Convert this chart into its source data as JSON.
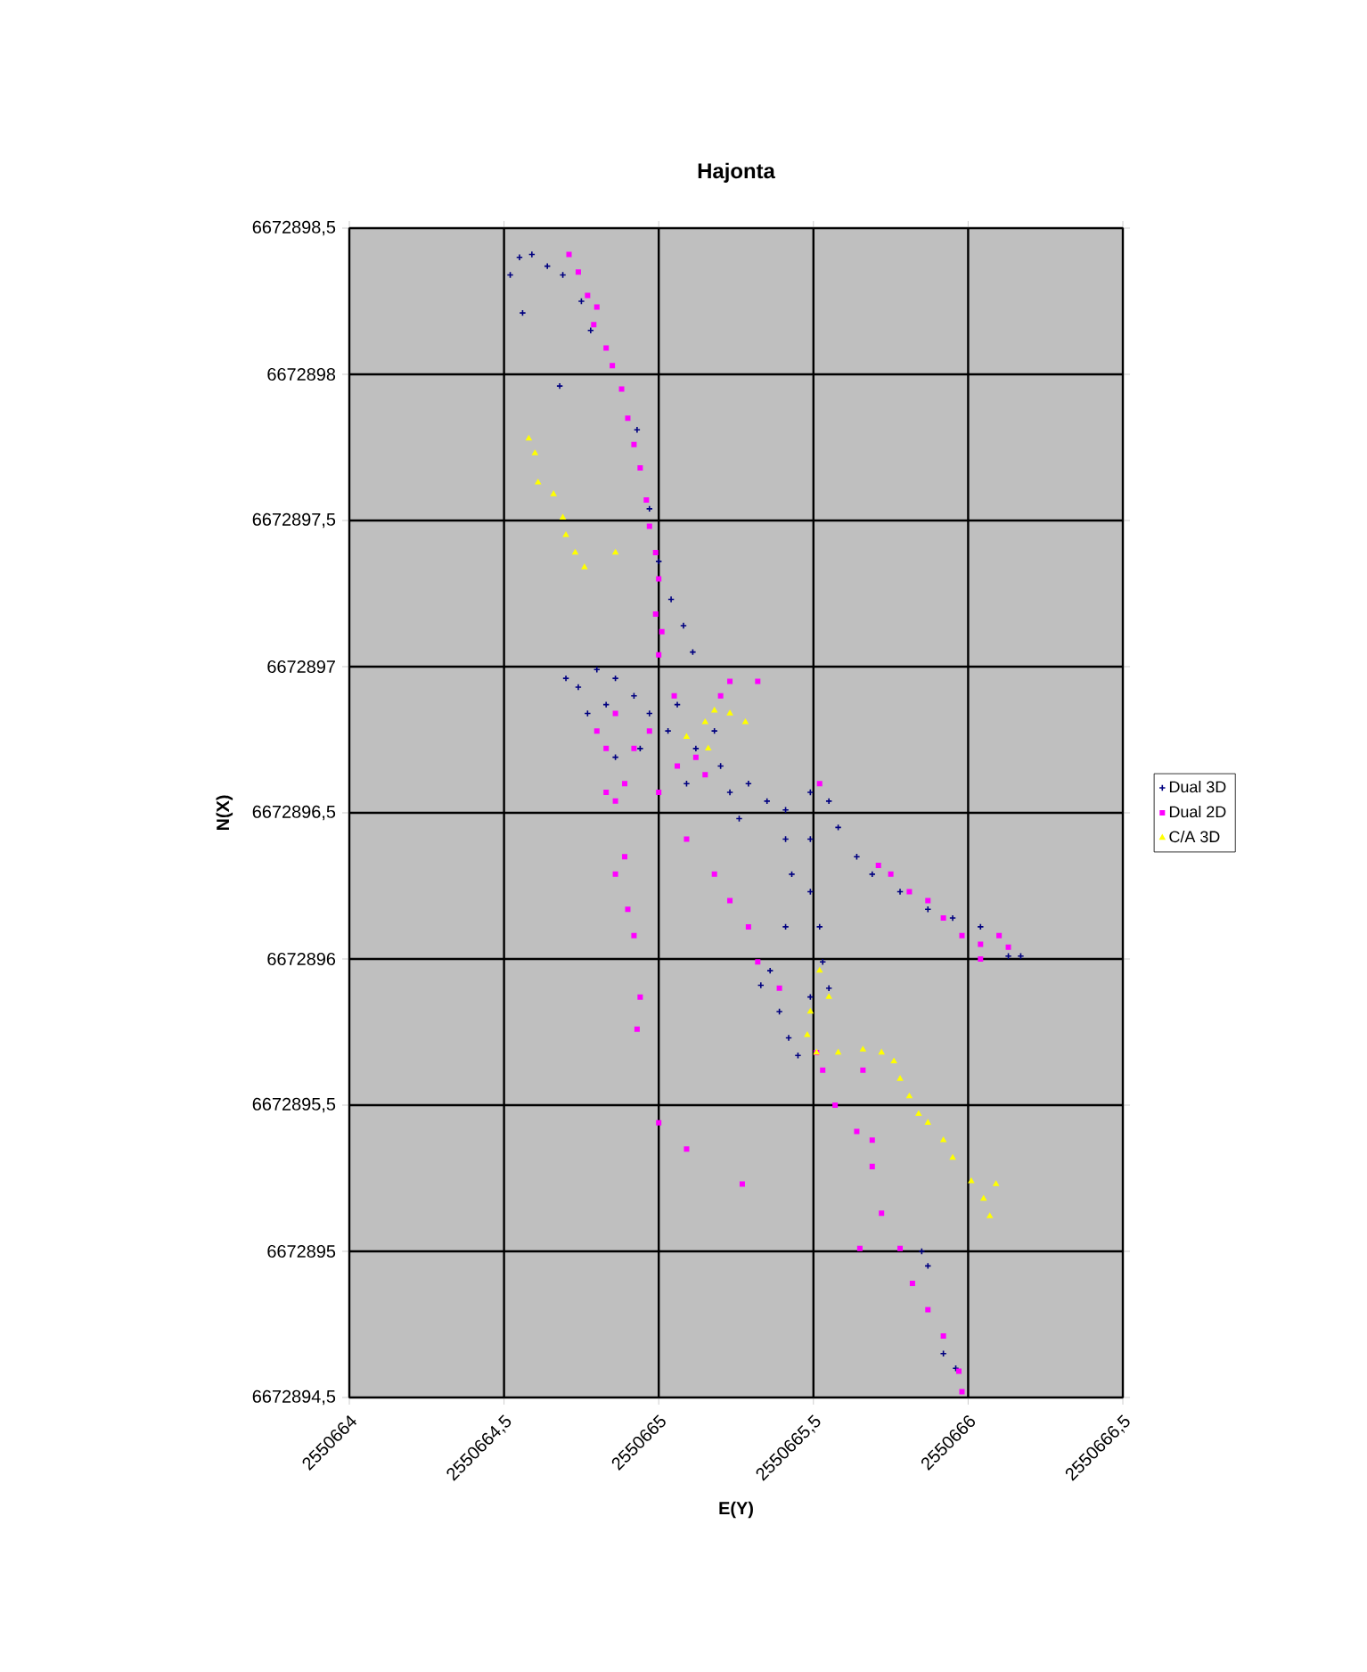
{
  "chart_data": {
    "type": "scatter",
    "title": "Hajonta",
    "xlabel": "E(Y)",
    "ylabel": "N(X)",
    "xlim": [
      2550664,
      2550666.5
    ],
    "ylim": [
      6672894.5,
      6672898.5
    ],
    "xticks": [
      2550664,
      {
        "value": 2550664.5,
        "label": "2550664,5"
      },
      2550665,
      {
        "value": 2550665.5,
        "label": "2550665,5"
      },
      2550666,
      {
        "value": 2550666.5,
        "label": "2550666,5"
      }
    ],
    "yticks": [
      {
        "value": 6672894.5,
        "label": "6672894,5"
      },
      6672895,
      {
        "value": 6672895.5,
        "label": "6672895,5"
      },
      6672896,
      {
        "value": 6672896.5,
        "label": "6672896,5"
      },
      6672897,
      {
        "value": 6672897.5,
        "label": "6672897,5"
      },
      6672898,
      {
        "value": 6672898.5,
        "label": "6672898,5"
      }
    ],
    "grid": true,
    "legend": "right",
    "series": [
      {
        "name": "Dual 3D",
        "color": "#000080",
        "marker": "cross",
        "x": [
          2550664.52,
          2550664.55,
          2550664.59,
          2550664.64,
          2550664.69,
          2550664.56,
          2550664.75,
          2550664.78,
          2550664.68,
          2550664.93,
          2550664.97,
          2550665.0,
          2550665.04,
          2550665.08,
          2550665.11,
          2550664.7,
          2550664.74,
          2550664.8,
          2550664.86,
          2550664.92,
          2550664.83,
          2550664.77,
          2550664.97,
          2550665.06,
          2550665.03,
          2550664.94,
          2550664.86,
          2550665.12,
          2550665.18,
          2550665.2,
          2550665.09,
          2550665.23,
          2550665.29,
          2550665.35,
          2550665.26,
          2550665.41,
          2550665.49,
          2550665.55,
          2550665.58,
          2550665.49,
          2550665.64,
          2550665.69,
          2550665.78,
          2550665.87,
          2550665.95,
          2550666.04,
          2550666.13,
          2550666.17,
          2550665.41,
          2550665.43,
          2550665.49,
          2550665.52,
          2550665.53,
          2550665.55,
          2550665.49,
          2550665.41,
          2550665.36,
          2550665.33,
          2550665.39,
          2550665.42,
          2550665.45,
          2550665.85,
          2550665.87,
          2550665.92,
          2550665.96
        ],
        "values": [
          6672898.34,
          6672898.4,
          6672898.41,
          6672898.37,
          6672898.34,
          6672898.21,
          6672898.25,
          6672898.15,
          6672897.96,
          6672897.81,
          6672897.54,
          6672897.36,
          6672897.23,
          6672897.14,
          6672897.05,
          6672896.96,
          6672896.93,
          6672896.99,
          6672896.96,
          6672896.9,
          6672896.87,
          6672896.84,
          6672896.84,
          6672896.87,
          6672896.78,
          6672896.72,
          6672896.69,
          6672896.72,
          6672896.78,
          6672896.66,
          6672896.6,
          6672896.57,
          6672896.6,
          6672896.54,
          6672896.48,
          6672896.51,
          6672896.57,
          6672896.54,
          6672896.45,
          6672896.41,
          6672896.35,
          6672896.29,
          6672896.23,
          6672896.17,
          6672896.14,
          6672896.11,
          6672896.01,
          6672896.01,
          6672896.41,
          6672896.29,
          6672896.23,
          6672896.11,
          6672895.99,
          6672895.9,
          6672895.87,
          6672896.11,
          6672895.96,
          6672895.91,
          6672895.82,
          6672895.73,
          6672895.67,
          6672895.0,
          6672894.95,
          6672894.65,
          6672894.6
        ]
      },
      {
        "name": "Dual 2D",
        "color": "#ff00ff",
        "marker": "square",
        "x": [
          2550664.71,
          2550664.74,
          2550664.77,
          2550664.8,
          2550664.79,
          2550664.83,
          2550664.85,
          2550664.88,
          2550664.9,
          2550664.92,
          2550664.94,
          2550664.96,
          2550664.97,
          2550664.99,
          2550665.0,
          2550664.99,
          2550665.01,
          2550665.0,
          2550664.8,
          2550664.83,
          2550664.86,
          2550664.92,
          2550664.97,
          2550665.06,
          2550665.12,
          2550665.15,
          2550664.86,
          2550664.83,
          2550664.89,
          2550665.0,
          2550665.05,
          2550665.2,
          2550665.32,
          2550665.23,
          2550664.89,
          2550664.86,
          2550664.9,
          2550664.92,
          2550664.94,
          2550664.93,
          2550665.0,
          2550665.09,
          2550665.27,
          2550665.09,
          2550665.18,
          2550665.23,
          2550665.29,
          2550665.32,
          2550665.39,
          2550665.51,
          2550665.53,
          2550665.57,
          2550665.64,
          2550665.69,
          2550665.72,
          2550665.78,
          2550665.82,
          2550665.87,
          2550665.92,
          2550665.97,
          2550665.98,
          2550665.66,
          2550665.69,
          2550665.65,
          2550665.71,
          2550665.75,
          2550665.81,
          2550665.87,
          2550665.92,
          2550665.98,
          2550666.04,
          2550666.1,
          2550666.13,
          2550666.04,
          2550665.52
        ],
        "values": [
          6672898.41,
          6672898.35,
          6672898.27,
          6672898.23,
          6672898.17,
          6672898.09,
          6672898.03,
          6672897.95,
          6672897.85,
          6672897.76,
          6672897.68,
          6672897.57,
          6672897.48,
          6672897.39,
          6672897.3,
          6672897.18,
          6672897.12,
          6672897.04,
          6672896.78,
          6672896.72,
          6672896.84,
          6672896.72,
          6672896.78,
          6672896.66,
          6672896.69,
          6672896.63,
          6672896.54,
          6672896.57,
          6672896.6,
          6672896.57,
          6672896.9,
          6672896.9,
          6672896.95,
          6672896.95,
          6672896.35,
          6672896.29,
          6672896.17,
          6672896.08,
          6672895.87,
          6672895.76,
          6672895.44,
          6672895.35,
          6672895.23,
          6672896.41,
          6672896.29,
          6672896.2,
          6672896.11,
          6672895.99,
          6672895.9,
          6672895.68,
          6672895.62,
          6672895.5,
          6672895.41,
          6672895.29,
          6672895.13,
          6672895.01,
          6672894.89,
          6672894.8,
          6672894.71,
          6672894.59,
          6672894.52,
          6672895.62,
          6672895.38,
          6672895.01,
          6672896.32,
          6672896.29,
          6672896.23,
          6672896.2,
          6672896.14,
          6672896.08,
          6672896.05,
          6672896.08,
          6672896.04,
          6672896.0,
          6672896.6
        ]
      },
      {
        "name": "C/A 3D",
        "color": "#ffff00",
        "marker": "triangle",
        "x": [
          2550664.58,
          2550664.6,
          2550664.61,
          2550664.66,
          2550664.69,
          2550664.7,
          2550664.73,
          2550664.76,
          2550664.86,
          2550665.15,
          2550665.18,
          2550665.23,
          2550665.28,
          2550665.09,
          2550665.16,
          2550665.52,
          2550665.55,
          2550665.49,
          2550665.48,
          2550665.51,
          2550665.58,
          2550665.66,
          2550665.72,
          2550665.76,
          2550665.78,
          2550665.81,
          2550665.84,
          2550665.87,
          2550665.92,
          2550665.95,
          2550666.01,
          2550666.05,
          2550666.09,
          2550666.07
        ],
        "values": [
          6672897.78,
          6672897.73,
          6672897.63,
          6672897.59,
          6672897.51,
          6672897.45,
          6672897.39,
          6672897.34,
          6672897.39,
          6672896.81,
          6672896.85,
          6672896.84,
          6672896.81,
          6672896.76,
          6672896.72,
          6672895.96,
          6672895.87,
          6672895.82,
          6672895.74,
          6672895.68,
          6672895.68,
          6672895.69,
          6672895.68,
          6672895.65,
          6672895.59,
          6672895.53,
          6672895.47,
          6672895.44,
          6672895.38,
          6672895.32,
          6672895.24,
          6672895.18,
          6672895.23,
          6672895.12
        ]
      }
    ]
  }
}
